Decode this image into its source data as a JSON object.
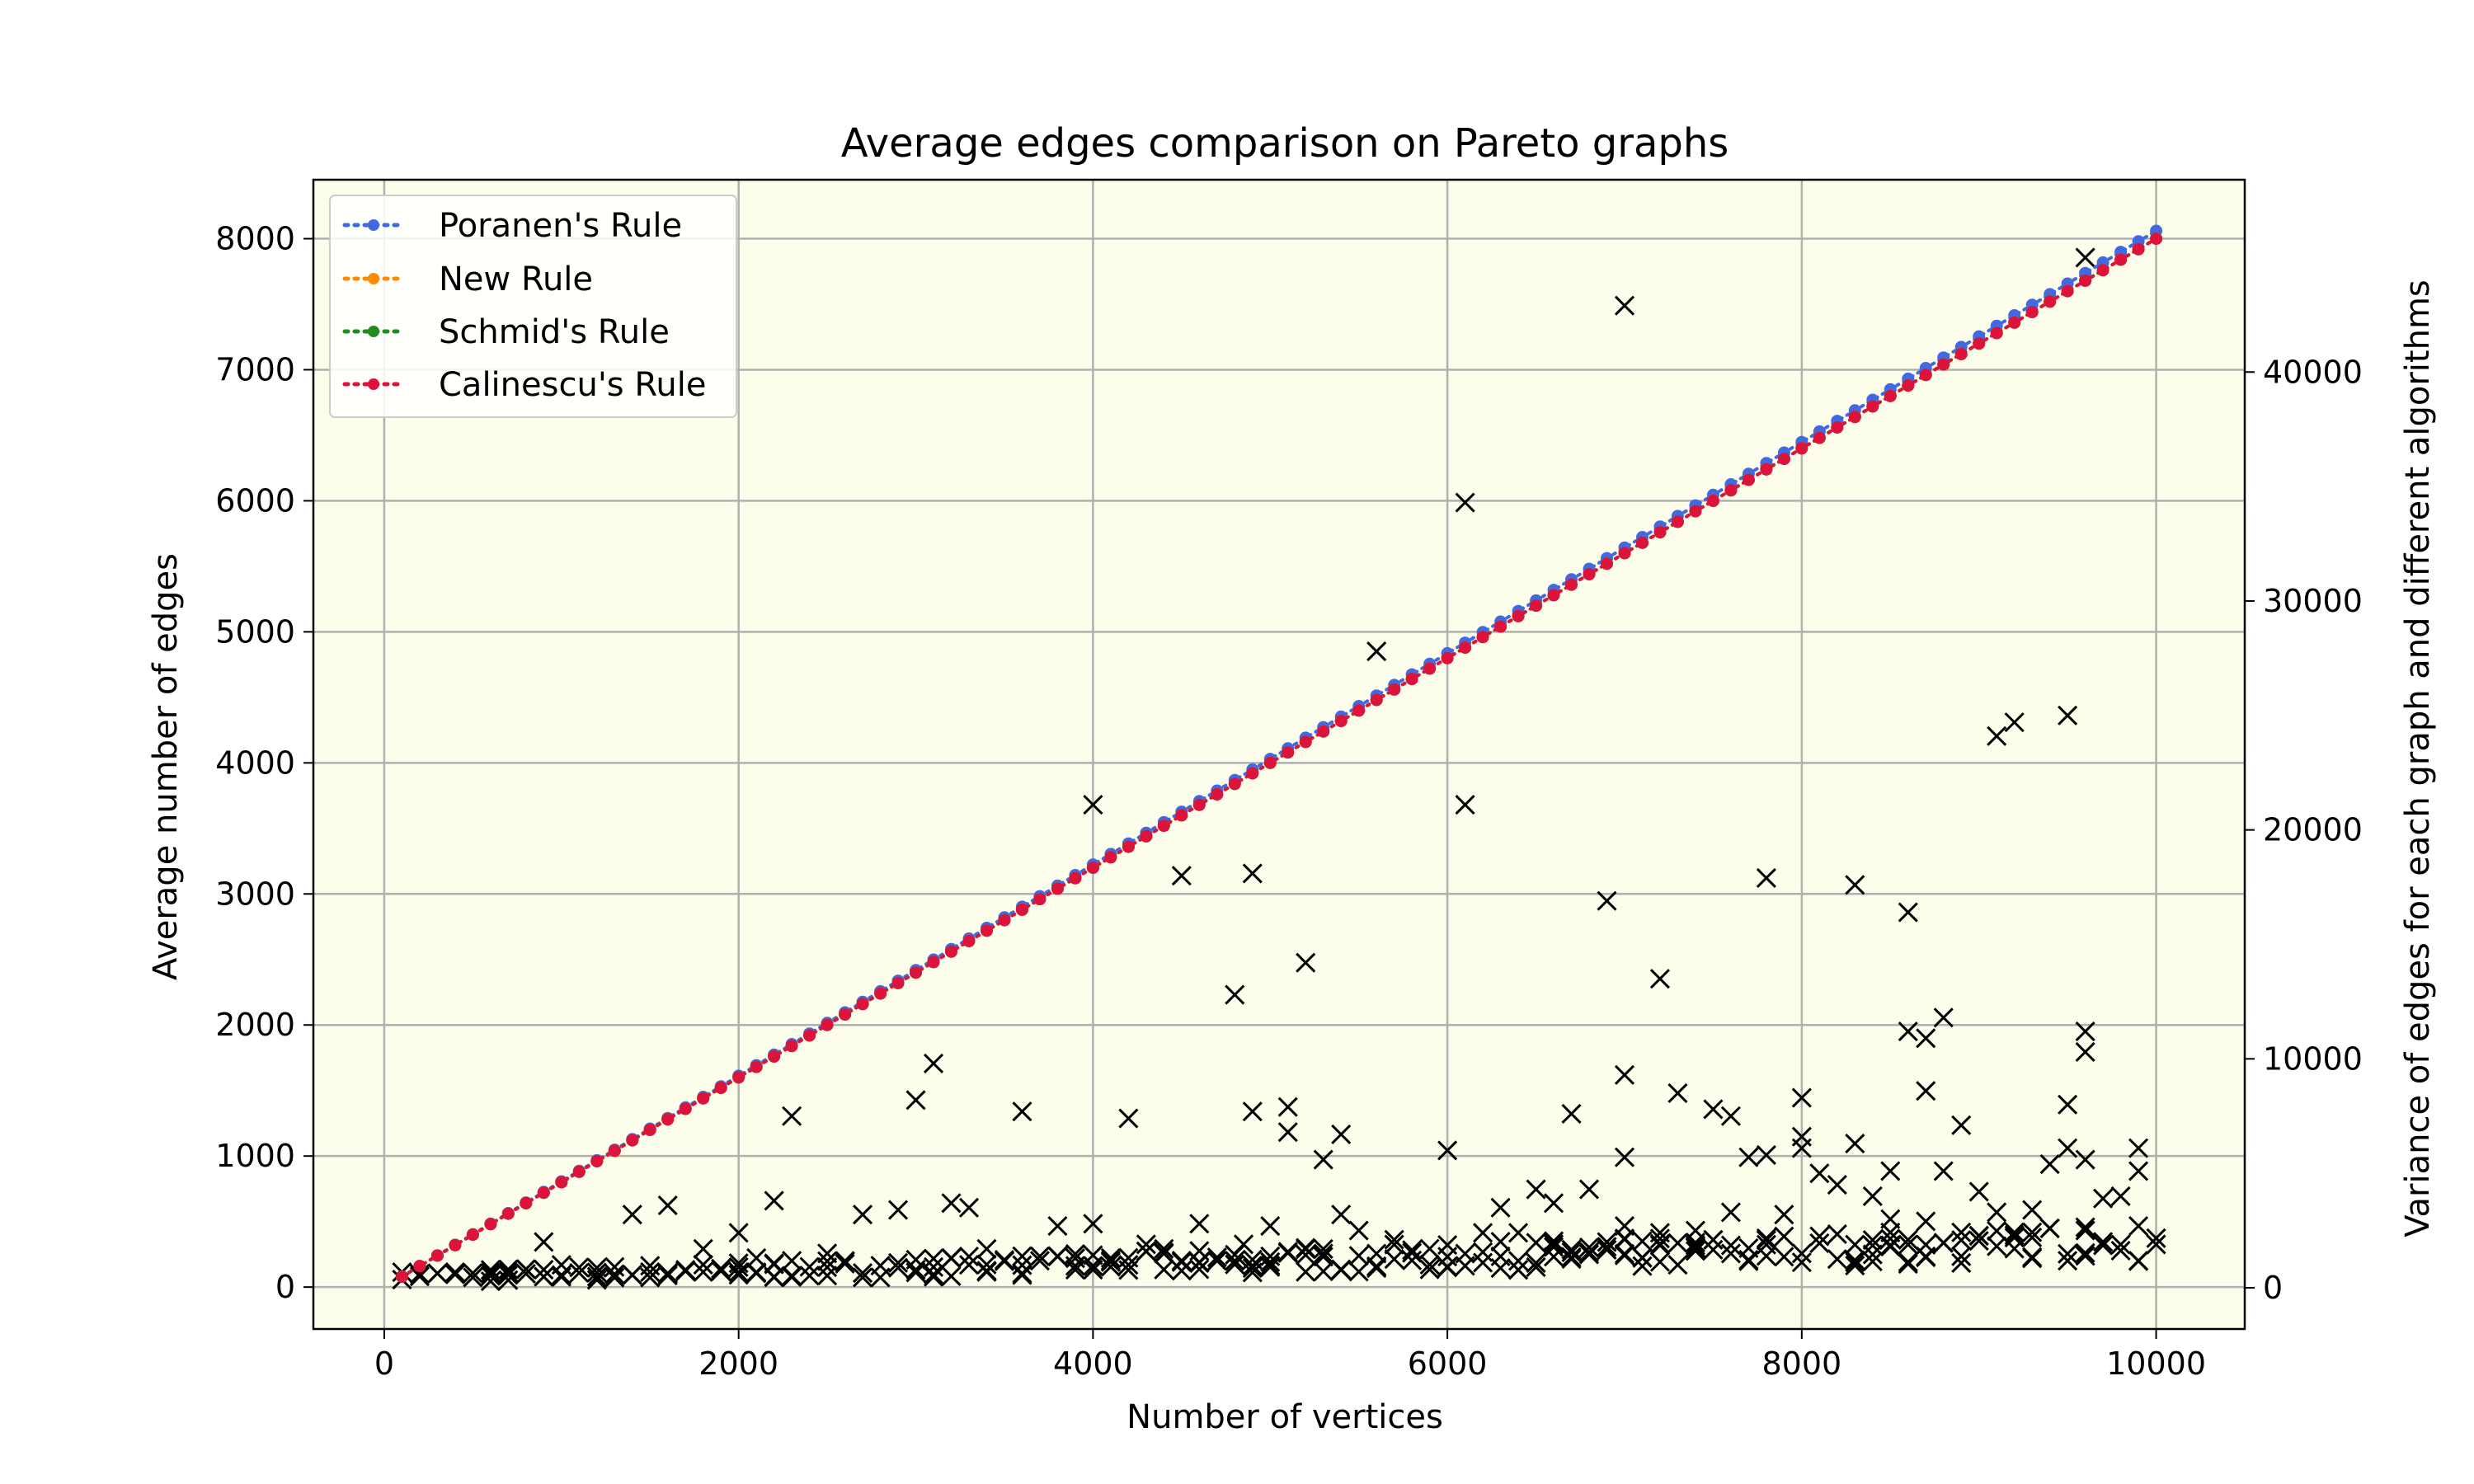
{
  "chart_data": {
    "type": "line",
    "title": "Average edges comparison on Pareto graphs",
    "xlabel": "Number of vertices",
    "ylabel": "Average number of edges",
    "y2label": "Variance of edges for each graph and different algorithms",
    "xlim": [
      -400,
      10500
    ],
    "ylim": [
      -320,
      8450
    ],
    "y2lim": [
      -1800,
      48400
    ],
    "xticks": [
      0,
      2000,
      4000,
      6000,
      8000,
      10000
    ],
    "yticks": [
      0,
      1000,
      2000,
      3000,
      4000,
      5000,
      6000,
      7000,
      8000
    ],
    "y2ticks": [
      0,
      10000,
      20000,
      30000,
      40000
    ],
    "grid": true,
    "legend_position": "upper-left",
    "background_color": "#fdfdeb",
    "series": [
      {
        "name": "Poranen's Rule",
        "color": "#4169e1",
        "x_start": 100,
        "x_step": 100,
        "slope": 0.806,
        "intercept": 0
      },
      {
        "name": "New Rule",
        "color": "#ff8c00",
        "x_start": 100,
        "x_step": 100,
        "slope": 0.8,
        "intercept": 0
      },
      {
        "name": "Schmid's Rule",
        "color": "#228b22",
        "x_start": 100,
        "x_step": 100,
        "slope": 0.8,
        "intercept": 0
      },
      {
        "name": "Calinescu's Rule",
        "color": "#dc143c",
        "x_start": 100,
        "x_step": 100,
        "slope": 0.8,
        "intercept": 0
      }
    ],
    "variance_markers": {
      "color": "#000000",
      "outliers": [
        [
          900,
          2000
        ],
        [
          1000,
          1000
        ],
        [
          1400,
          3200
        ],
        [
          1600,
          3600
        ],
        [
          1800,
          1700
        ],
        [
          2000,
          2400
        ],
        [
          2100,
          1300
        ],
        [
          2200,
          3800
        ],
        [
          2300,
          7500
        ],
        [
          2500,
          1500
        ],
        [
          2700,
          3200
        ],
        [
          2900,
          3400
        ],
        [
          3000,
          8200
        ],
        [
          3100,
          9800
        ],
        [
          3200,
          3700
        ],
        [
          3300,
          3500
        ],
        [
          3400,
          1700
        ],
        [
          3600,
          7700
        ],
        [
          3800,
          2700
        ],
        [
          4000,
          21100
        ],
        [
          4000,
          2800
        ],
        [
          4200,
          7400
        ],
        [
          4300,
          1900
        ],
        [
          4400,
          1700
        ],
        [
          4500,
          18000
        ],
        [
          4600,
          2800
        ],
        [
          4800,
          12800
        ],
        [
          4850,
          1900
        ],
        [
          4900,
          18100
        ],
        [
          4900,
          7700
        ],
        [
          5000,
          2700
        ],
        [
          5100,
          7900
        ],
        [
          5100,
          6800
        ],
        [
          5200,
          14200
        ],
        [
          5300,
          5600
        ],
        [
          5400,
          6700
        ],
        [
          5400,
          3200
        ],
        [
          5500,
          2500
        ],
        [
          5600,
          27800
        ],
        [
          5700,
          2100
        ],
        [
          6000,
          6000
        ],
        [
          6100,
          34300
        ],
        [
          6100,
          21100
        ],
        [
          6200,
          2400
        ],
        [
          6300,
          3500
        ],
        [
          6400,
          2400
        ],
        [
          6500,
          4300
        ],
        [
          6600,
          3700
        ],
        [
          6700,
          7600
        ],
        [
          6800,
          4300
        ],
        [
          6900,
          16900
        ],
        [
          7000,
          42900
        ],
        [
          7000,
          9300
        ],
        [
          7000,
          5700
        ],
        [
          7000,
          2700
        ],
        [
          7200,
          13500
        ],
        [
          7200,
          2400
        ],
        [
          7300,
          8500
        ],
        [
          7400,
          2500
        ],
        [
          7500,
          7800
        ],
        [
          7600,
          7500
        ],
        [
          7600,
          3300
        ],
        [
          7700,
          5700
        ],
        [
          7800,
          17900
        ],
        [
          7800,
          5800
        ],
        [
          7900,
          3200
        ],
        [
          8000,
          8300
        ],
        [
          8000,
          6600
        ],
        [
          8000,
          6100
        ],
        [
          8100,
          5000
        ],
        [
          8200,
          4500
        ],
        [
          8300,
          17600
        ],
        [
          8300,
          6300
        ],
        [
          8400,
          4000
        ],
        [
          8500,
          5100
        ],
        [
          8500,
          3000
        ],
        [
          8600,
          16400
        ],
        [
          8600,
          11200
        ],
        [
          8700,
          10900
        ],
        [
          8700,
          8600
        ],
        [
          8700,
          2900
        ],
        [
          8800,
          11800
        ],
        [
          8800,
          5100
        ],
        [
          8900,
          7100
        ],
        [
          9000,
          4200
        ],
        [
          9100,
          24100
        ],
        [
          9100,
          3300
        ],
        [
          9200,
          24700
        ],
        [
          9300,
          3400
        ],
        [
          9400,
          5400
        ],
        [
          9500,
          25000
        ],
        [
          9500,
          8000
        ],
        [
          9500,
          6100
        ],
        [
          9600,
          45000
        ],
        [
          9600,
          11200
        ],
        [
          9600,
          10300
        ],
        [
          9600,
          5600
        ],
        [
          9700,
          3900
        ],
        [
          9800,
          4000
        ],
        [
          9900,
          6100
        ],
        [
          9900,
          5100
        ],
        [
          9900,
          2700
        ]
      ]
    }
  }
}
